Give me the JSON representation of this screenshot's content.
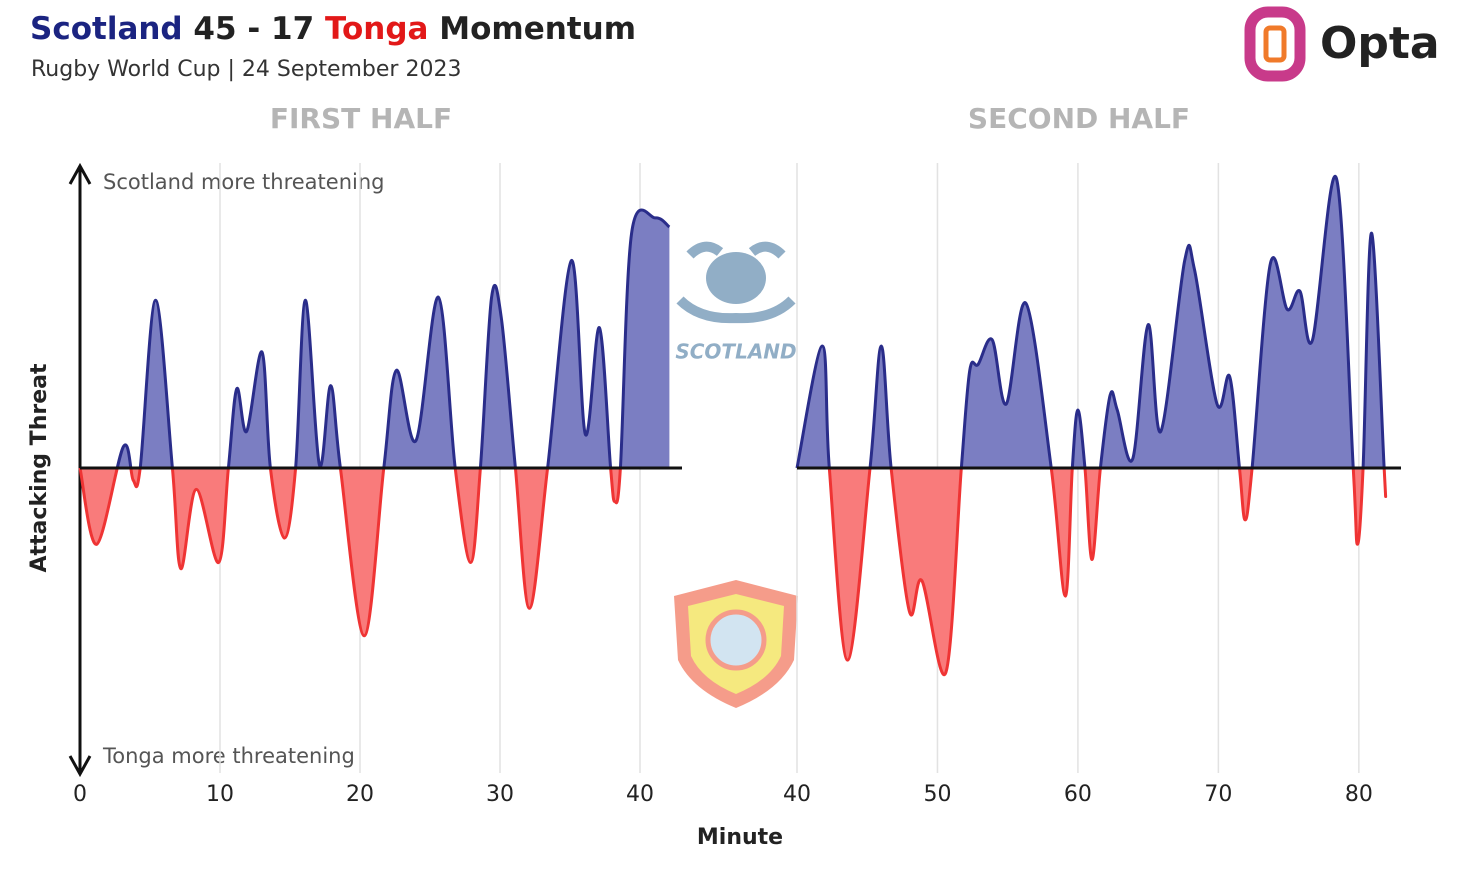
{
  "chart_data": {
    "type": "momentum",
    "title": {
      "home": "Scotland",
      "score": "45 - 17",
      "away": "Tonga",
      "rest": "Momentum"
    },
    "subtitle": "Rugby World Cup | 24 September 2023",
    "brand": "Opta",
    "logo_text": "SCOTLAND",
    "ylabel": "Attacking Threat",
    "xlabel": "Minute",
    "annotation_top": "Scotland more threatening",
    "annotation_bottom": "Tonga more threatening",
    "ylim": [
      -1,
      1
    ],
    "grid": true,
    "colors": {
      "home_fill": "#7b7ec2",
      "home_line": "#2a2d8a",
      "away_fill": "#f97b7b",
      "away_line": "#ef3434",
      "home_title": "#1b2481",
      "away_title": "#e21818"
    },
    "halves": [
      {
        "title": "FIRST HALF",
        "xlim": [
          0,
          43
        ],
        "xticks": [
          0,
          10,
          20,
          30,
          40
        ],
        "x": [
          0,
          1.2,
          3.1,
          3.8,
          4.3,
          5.4,
          6.6,
          7.2,
          8.3,
          9.9,
          10.6,
          11.2,
          11.9,
          13,
          13.6,
          14.6,
          15.4,
          16.1,
          17.1,
          17.9,
          18.6,
          20.3,
          21.7,
          22.6,
          24,
          25.6,
          26.8,
          27.9,
          28.6,
          29.4,
          30.1,
          31.1,
          32.1,
          33.4,
          35.1,
          36.1,
          37.1,
          37.9,
          38.2,
          38.6,
          39.4,
          41.1,
          42.1
        ],
        "values": [
          0,
          -0.25,
          0.07,
          -0.04,
          0,
          0.55,
          0,
          -0.33,
          -0.07,
          -0.31,
          0,
          0.26,
          0.12,
          0.38,
          0,
          -0.23,
          0,
          0.55,
          0.01,
          0.27,
          0,
          -0.55,
          0,
          0.32,
          0.09,
          0.56,
          0,
          -0.31,
          0,
          0.56,
          0.49,
          0,
          -0.46,
          0,
          0.68,
          0.11,
          0.46,
          0,
          -0.11,
          0,
          0.77,
          0.82,
          0.79
        ]
      },
      {
        "title": "SECOND HALF",
        "xlim": [
          40,
          83
        ],
        "xticks": [
          40,
          50,
          60,
          70,
          80
        ],
        "x": [
          40,
          41.8,
          42.3,
          43.6,
          45.2,
          46,
          46.7,
          48,
          48.9,
          50.6,
          51.7,
          52.3,
          52.9,
          53.9,
          54.9,
          56.3,
          58.1,
          59.1,
          59.6,
          60,
          60.5,
          61,
          61.6,
          62.3,
          62.8,
          63.9,
          65,
          65.9,
          67.6,
          68.3,
          69.9,
          70.8,
          71.5,
          71.9,
          72.4,
          73.7,
          74.9,
          75.8,
          76.7,
          78.4,
          79.6,
          79.9,
          80.3,
          80.9,
          81.8,
          81.9
        ],
        "values": [
          0,
          0.4,
          0,
          -0.63,
          0,
          0.4,
          0,
          -0.47,
          -0.37,
          -0.67,
          0,
          0.32,
          0.34,
          0.42,
          0.21,
          0.54,
          0,
          -0.42,
          0,
          0.19,
          0,
          -0.3,
          0,
          0.24,
          0.19,
          0.03,
          0.47,
          0.12,
          0.68,
          0.65,
          0.21,
          0.3,
          0,
          -0.17,
          0,
          0.67,
          0.52,
          0.58,
          0.42,
          0.95,
          0,
          -0.25,
          0,
          0.77,
          0,
          -0.09
        ]
      }
    ]
  }
}
